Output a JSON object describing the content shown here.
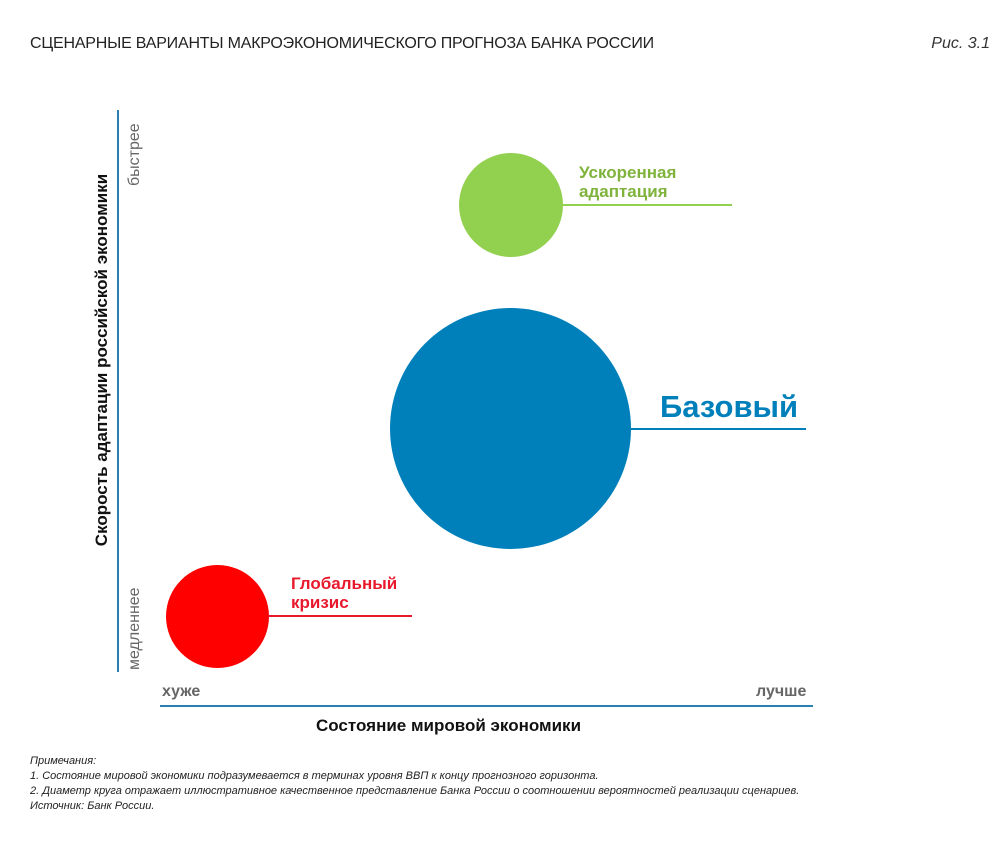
{
  "title": "СЦЕНАРНЫЕ ВАРИАНТЫ МАКРОЭКОНОМИЧЕСКОГО ПРОГНОЗА БАНКА РОССИИ",
  "figure_label": "Рис. 3.1",
  "y_axis": {
    "title": "Скорость адаптации российской экономики",
    "low": "медленнее",
    "high": "быстрее"
  },
  "x_axis": {
    "title": "Состояние мировой экономики",
    "low": "хуже",
    "high": "лучше"
  },
  "scenarios": [
    {
      "line1": "Ускоренная",
      "line2": "адаптация",
      "color": "#92d050"
    },
    {
      "line1": "Базовый",
      "color": "#0080bb"
    },
    {
      "line1": "Глобальный",
      "line2": "кризис",
      "color": "#ff0000",
      "label_color": "#e8192c"
    }
  ],
  "notes": {
    "heading": "Примечания:",
    "items": [
      "1. Состояние мировой экономики подразумевается в терминах уровня ВВП к концу прогнозного горизонта.",
      "2. Диаметр круга отражает иллюстративное качественное представление Банка России о соотношении вероятностей реализации сценариев."
    ],
    "source": "Источник: Банк России."
  }
}
